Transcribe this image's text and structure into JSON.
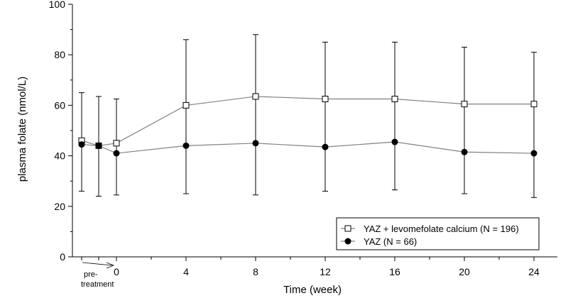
{
  "chart_data": {
    "type": "line",
    "xlabel": "Time (week)",
    "ylabel": "plasma folate (nmol/L)",
    "ylim": [
      0,
      100
    ],
    "yticks": [
      "0",
      "20",
      "40",
      "60",
      "80",
      "100"
    ],
    "xticks": [
      "0",
      "4",
      "8",
      "12",
      "16",
      "20",
      "24"
    ],
    "pretreatment_label_line1": "pre-",
    "pretreatment_label_line2": "treatment",
    "grid": false,
    "legend_position": "bottom-right",
    "series": [
      {
        "name": "YAZ + levomefolate calcium (N = 196)",
        "marker": "open-square",
        "color": "#808080",
        "points": [
          {
            "x": "pre-1",
            "y": 46,
            "err_low": 26,
            "err_high": 65
          },
          {
            "x": "pre-2",
            "y": 44,
            "err_low": 24,
            "err_high": 63.5
          },
          {
            "x": 0,
            "y": 45,
            "err_low": 24.5,
            "err_high": 62.5
          },
          {
            "x": 4,
            "y": 60,
            "err_low": 25,
            "err_high": 86
          },
          {
            "x": 8,
            "y": 63.5,
            "err_low": 24.5,
            "err_high": 88
          },
          {
            "x": 12,
            "y": 62.5,
            "err_low": 26,
            "err_high": 85
          },
          {
            "x": 16,
            "y": 62.5,
            "err_low": 26.5,
            "err_high": 85
          },
          {
            "x": 20,
            "y": 60.5,
            "err_low": 25,
            "err_high": 83
          },
          {
            "x": 24,
            "y": 60.5,
            "err_low": 23.5,
            "err_high": 81
          }
        ]
      },
      {
        "name": "YAZ (N = 66)",
        "marker": "filled-circle",
        "color": "#808080",
        "points": [
          {
            "x": "pre-1",
            "y": 44.5
          },
          {
            "x": "pre-2",
            "y": 44
          },
          {
            "x": 0,
            "y": 41
          },
          {
            "x": 4,
            "y": 44
          },
          {
            "x": 8,
            "y": 45
          },
          {
            "x": 12,
            "y": 43.5
          },
          {
            "x": 16,
            "y": 45.5
          },
          {
            "x": 20,
            "y": 41.5
          },
          {
            "x": 24,
            "y": 41
          }
        ]
      }
    ]
  }
}
